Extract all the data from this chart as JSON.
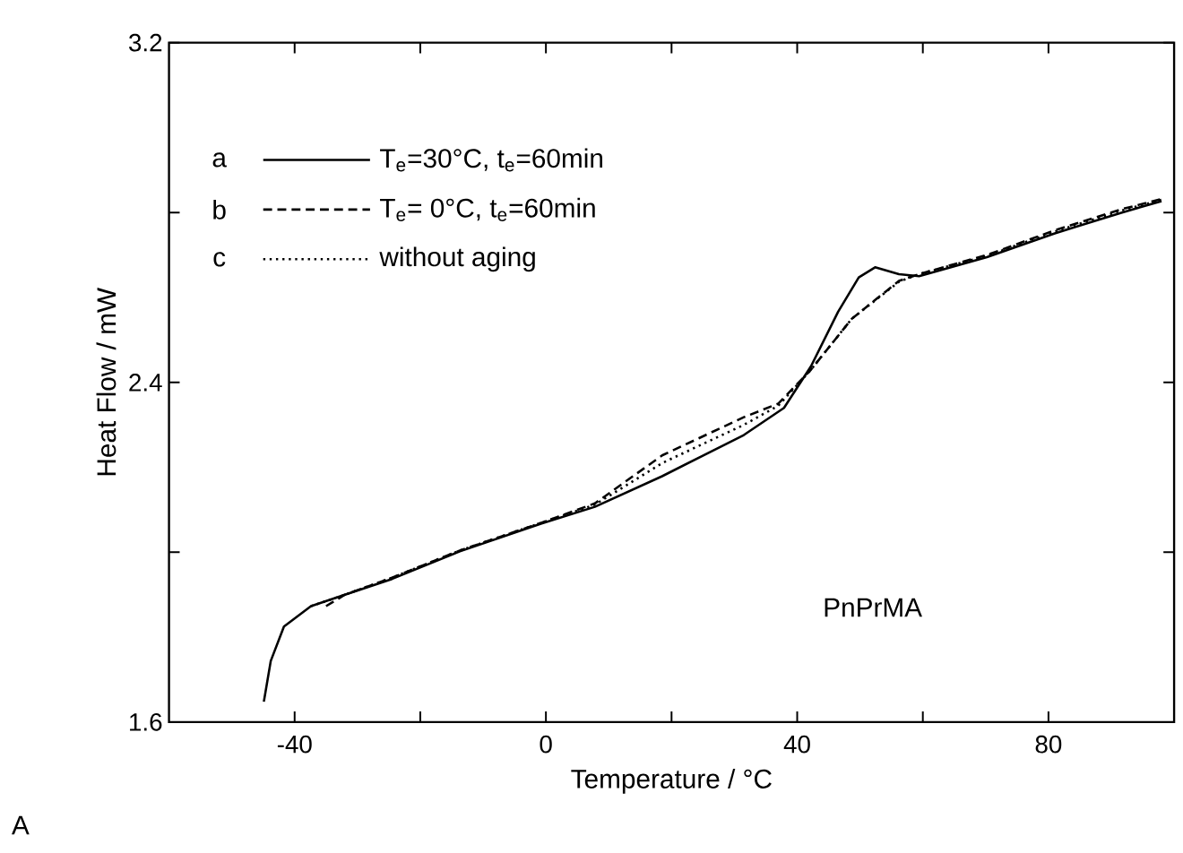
{
  "chart_data": {
    "type": "line",
    "xlabel": "Temperature / °C",
    "ylabel": "Heat Flow / mW",
    "xlim": [
      -60,
      100
    ],
    "ylim": [
      1.6,
      3.2
    ],
    "xticks": [
      -40,
      {
        "value": -20,
        "label": null
      },
      0,
      {
        "value": 20,
        "label": null
      },
      40,
      {
        "value": 60,
        "label": null
      },
      80
    ],
    "yticks": [
      1.6,
      {
        "value": 2.0,
        "label": null
      },
      2.4,
      {
        "value": 2.8,
        "label": null
      },
      3.2
    ],
    "legend": "top left",
    "grid": false,
    "marker": "none",
    "annotations": [
      "a",
      "b",
      "c",
      "PnPrMA",
      "A"
    ],
    "series": [
      {
        "name": "T$_{e}$=30°C, t$_{e}$=60min",
        "color": "#000000",
        "line_style": "solid",
        "x": [
          -44.9,
          -43.8,
          -41.7,
          -37.4,
          -32,
          -24.5,
          -13.7,
          -0.8,
          7.8,
          18.5,
          31.5,
          37.9,
          42.2,
          46.5,
          49.8,
          52.4,
          56.2,
          59.4,
          70.2,
          81,
          91.7,
          98
        ],
        "values": [
          1.648,
          1.744,
          1.825,
          1.873,
          1.9,
          1.937,
          2.002,
          2.067,
          2.107,
          2.179,
          2.276,
          2.34,
          2.438,
          2.566,
          2.647,
          2.671,
          2.655,
          2.65,
          2.695,
          2.751,
          2.8,
          2.827
        ]
      },
      {
        "name": "T$_{e}$= 0°C, t$_{e}$=60min",
        "color": "#000000",
        "line_style": "dashed",
        "x": [
          -35,
          -32,
          -24.5,
          -13.7,
          -0.8,
          7.8,
          18.5,
          31.5,
          37,
          42.2,
          48.7,
          56.2,
          59.4,
          70.2,
          81,
          91.7,
          98
        ],
        "values": [
          1.873,
          1.9,
          1.94,
          2.004,
          2.069,
          2.115,
          2.228,
          2.318,
          2.35,
          2.43,
          2.55,
          2.639,
          2.655,
          2.7,
          2.758,
          2.808,
          2.832
        ]
      },
      {
        "name": "without aging",
        "color": "#000000",
        "line_style": "dotted",
        "x": [
          -37.4,
          -32,
          -24.5,
          -13.7,
          -0.8,
          7.8,
          18.5,
          31.5,
          37,
          42.2,
          48.7,
          56.2,
          59.4,
          70.2,
          81,
          91.7,
          98
        ],
        "values": [
          1.873,
          1.9,
          1.94,
          2.004,
          2.069,
          2.112,
          2.21,
          2.3,
          2.345,
          2.43,
          2.55,
          2.637,
          2.655,
          2.698,
          2.755,
          2.805,
          2.83
        ]
      }
    ]
  }
}
